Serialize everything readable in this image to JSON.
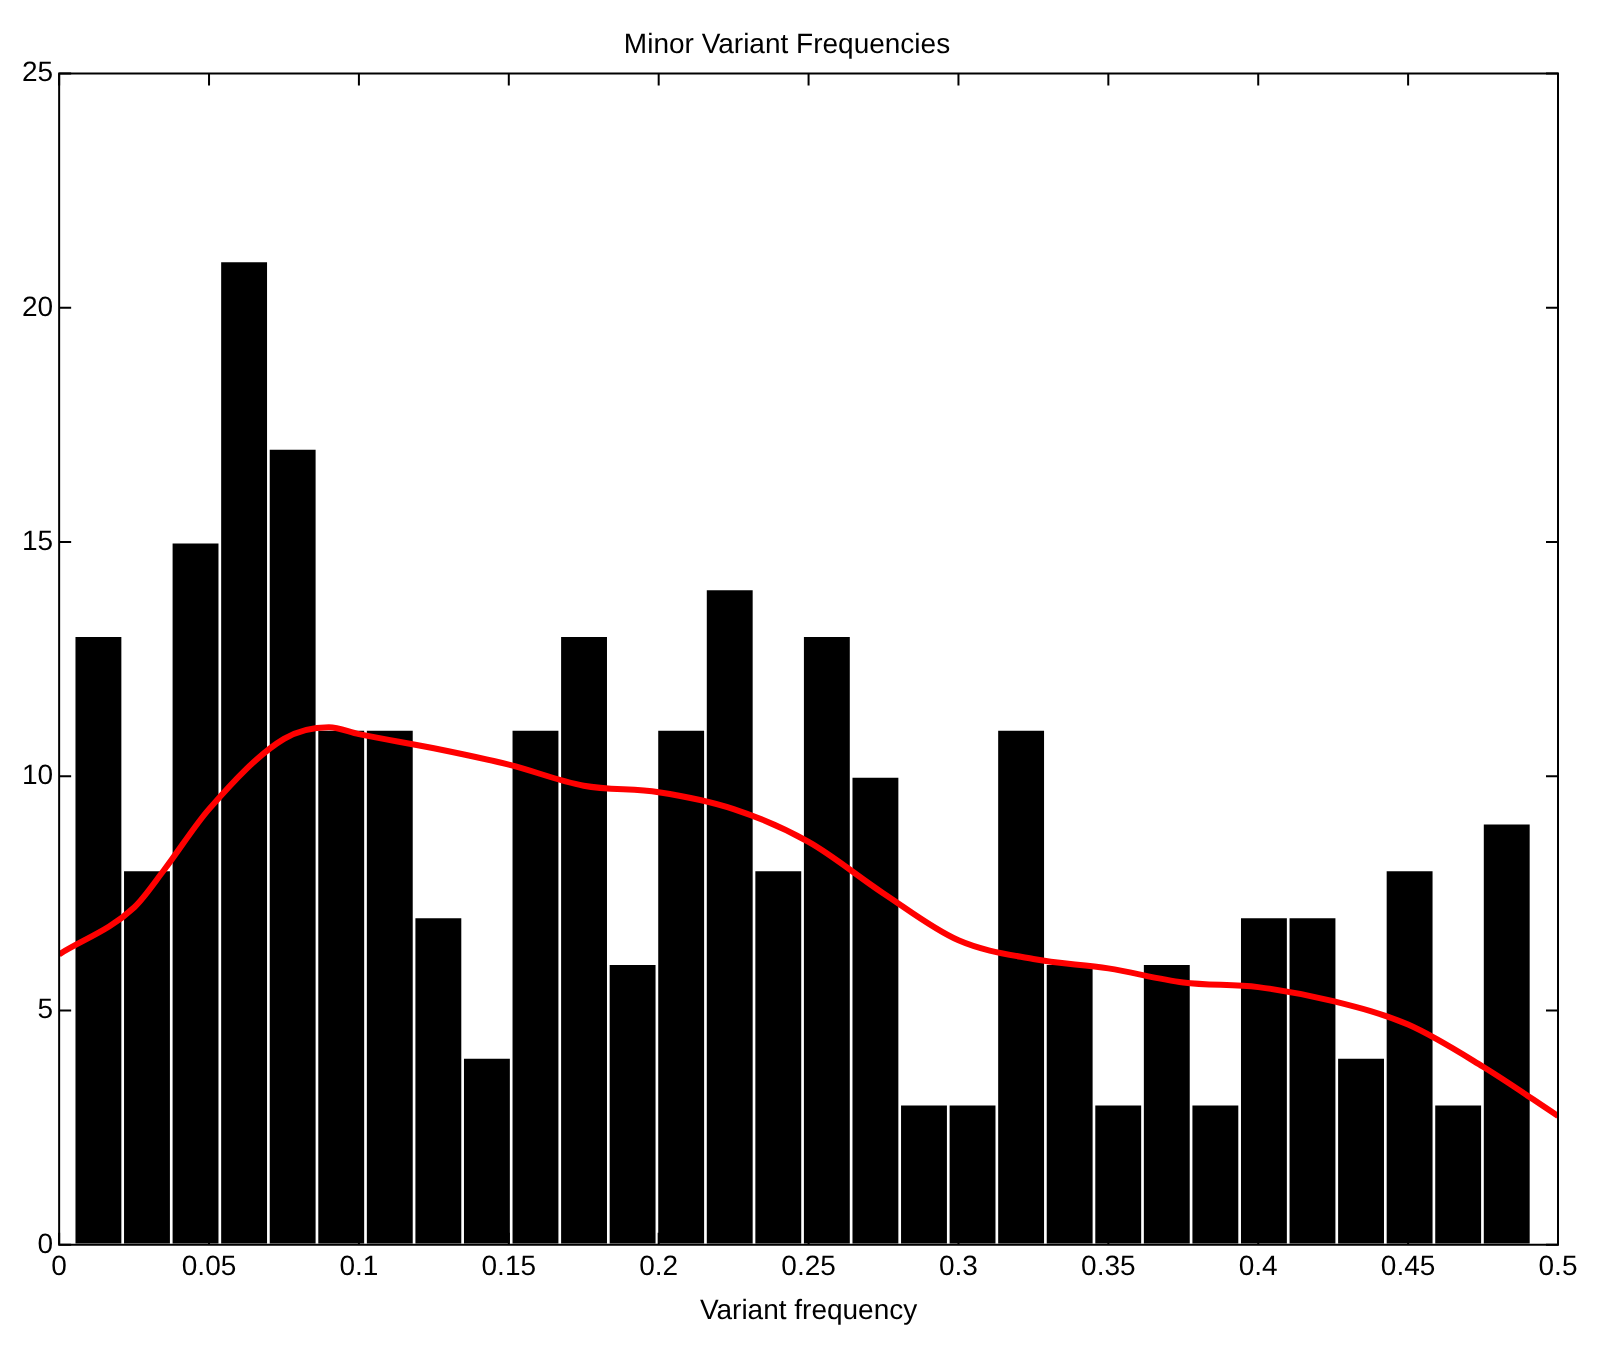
{
  "chart_data": {
    "type": "histogram",
    "title": "Minor Variant Frequencies",
    "xlabel": "Variant frequency",
    "bins": [
      0.005,
      0.0212,
      0.0374,
      0.0536,
      0.0698,
      0.086,
      0.1022,
      0.1184,
      0.1346,
      0.1508,
      0.167,
      0.1832,
      0.1994,
      0.2156,
      0.2318,
      0.248,
      0.2642,
      0.2804,
      0.2966,
      0.3128,
      0.329,
      0.3452,
      0.3614,
      0.3776,
      0.3938,
      0.41,
      0.4262,
      0.4424,
      0.4586,
      0.4748,
      0.491
    ],
    "values": [
      13,
      8,
      15,
      21,
      17,
      11,
      11,
      7,
      4,
      11,
      13,
      6,
      11,
      14,
      8,
      13,
      10,
      3,
      3,
      11,
      6,
      3,
      6,
      3,
      7,
      7,
      4,
      8,
      3,
      9
    ],
    "color": "#000000",
    "series": [
      {
        "type": "line",
        "color": "#ff0000",
        "x": [
          0,
          0.025,
          0.035,
          0.05,
          0.075,
          0.09,
          0.1,
          0.125,
          0.15,
          0.175,
          0.2,
          0.225,
          0.25,
          0.275,
          0.3,
          0.325,
          0.35,
          0.375,
          0.4,
          0.425,
          0.45,
          0.475,
          0.5
        ],
        "values": [
          6.2,
          7.2,
          8.0,
          9.3,
          10.8,
          11.05,
          10.9,
          10.6,
          10.25,
          9.8,
          9.66,
          9.3,
          8.6,
          7.5,
          6.5,
          6.1,
          5.9,
          5.6,
          5.5,
          5.2,
          4.7,
          3.8,
          2.75
        ]
      }
    ],
    "xlim": [
      0,
      0.5
    ],
    "xticks": [
      0,
      0.05,
      0.1,
      0.15,
      0.2,
      0.25,
      0.3,
      0.35,
      0.4,
      0.45,
      0.5
    ],
    "ylim": [
      0,
      25
    ],
    "yticks": [
      0,
      5,
      10,
      15,
      20,
      25
    ]
  }
}
